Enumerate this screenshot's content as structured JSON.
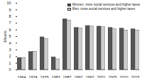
{
  "chart_data": {
    "type": "bar",
    "categories": [
      "1964",
      "1974",
      "1979",
      "1983",
      "1987",
      "1992",
      "1997",
      "2001",
      "2005",
      "2010",
      "2015"
    ],
    "series": [
      {
        "name": "Women: more social services and higher taxes",
        "color": "#555555",
        "values": [
          1.8,
          2.7,
          4.9,
          1.9,
          7.6,
          6.3,
          6.6,
          6.5,
          6.3,
          6.2,
          6.1
        ]
      },
      {
        "name": "Men: more social services and higher taxes",
        "color": "#cccccc",
        "values": [
          1.8,
          2.7,
          4.6,
          1.6,
          7.4,
          6.2,
          6.5,
          6.4,
          6.1,
          5.9,
          5.9
        ]
      }
    ],
    "y_label": "Means",
    "ylim": [
      0,
      10
    ],
    "yticks": [
      0,
      1,
      2,
      3,
      4,
      5,
      6,
      7,
      8,
      9,
      10
    ],
    "legend": "top-right"
  }
}
